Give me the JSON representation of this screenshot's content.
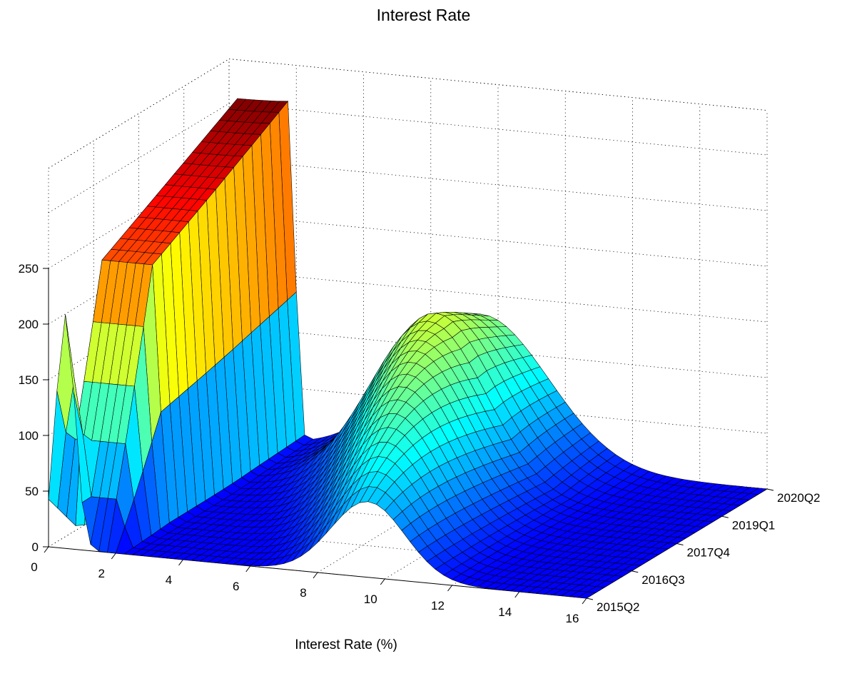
{
  "chart_data": {
    "type": "surface",
    "title": "Interest Rate",
    "xlabel": "Interest Rate (%)",
    "ylabel": "",
    "zlabel": "",
    "x_ticks": [
      0,
      2,
      4,
      6,
      8,
      10,
      12,
      14,
      16
    ],
    "xlim": [
      0,
      16
    ],
    "y_ticks": [
      "2015Q2",
      "2016Q3",
      "2017Q4",
      "2019Q1",
      "2020Q2"
    ],
    "y_range": [
      "2015Q2",
      "2020Q2"
    ],
    "z_ticks": [
      0,
      50,
      100,
      150,
      200,
      250
    ],
    "zlim": [
      0,
      250
    ],
    "grid": true,
    "colormap": "jet",
    "surface_description_values": {
      "quarters_count": 21,
      "first_quarter_peak": {
        "x": 0.5,
        "z": 210
      },
      "first_quarter_secondary_peak": {
        "x": 9.5,
        "z": 68
      },
      "last_quarter_peak_z": 305,
      "last_quarter_peak_x_range": [
        0,
        1.8
      ],
      "middle_hump_max": {
        "x": 7.5,
        "z": 160
      }
    }
  }
}
